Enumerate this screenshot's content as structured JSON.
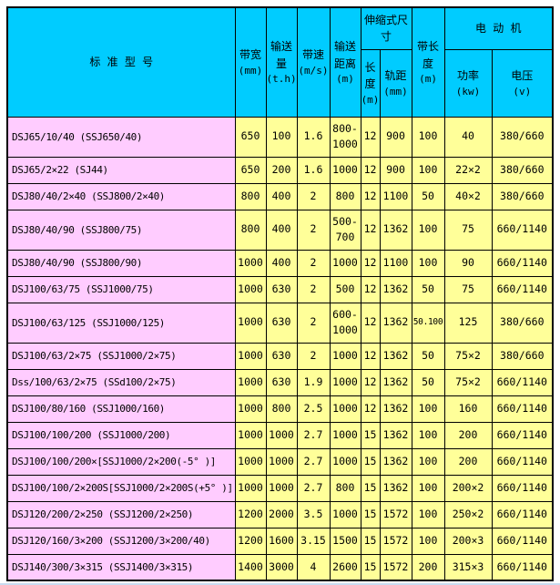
{
  "colors": {
    "header_bg": "#00CCFF",
    "model_col_bg": "#FFCCFF",
    "value_bg": "#FFFF99",
    "border": "#000000",
    "page_bg": "#FFFFFF",
    "edge_line": "#C9DCF0"
  },
  "table": {
    "header": {
      "model": "标 准 型 号",
      "belt_width": {
        "label": "带宽",
        "unit": "(mm)"
      },
      "capacity": {
        "label": "输送量",
        "unit": "(t.h)"
      },
      "speed": {
        "label": "带速",
        "unit": "(m/s)"
      },
      "distance": {
        "label": "输送距离",
        "unit": "(m)"
      },
      "telescopic": "伸缩式尺寸",
      "tele_length": {
        "label": "长度",
        "unit": "(m)"
      },
      "gauge": {
        "label": "轨距",
        "unit": "(mm)"
      },
      "belt_length": {
        "label": "带长度",
        "unit": "(m)"
      },
      "motor": "电 动 机",
      "power": {
        "label": "功率",
        "unit": "(kw)"
      },
      "voltage": {
        "label": "电压",
        "unit": "(v)"
      }
    },
    "columns": [
      "标准型号",
      "带宽(mm)",
      "输送量(t.h)",
      "带速(m/s)",
      "输送距离(m)",
      "长度(m)",
      "轨距(mm)",
      "带长度(m)",
      "功率(kw)",
      "电压(v)"
    ],
    "rows": [
      {
        "model": "DSJ65/10/40 (SSJ650/40)",
        "values": [
          "650",
          "100",
          "1.6",
          "800-1000",
          "12",
          "900",
          "100",
          "40",
          "380/660"
        ]
      },
      {
        "model": "DSJ65/2×22 (SJ44)",
        "values": [
          "650",
          "200",
          "1.6",
          "1000",
          "12",
          "900",
          "100",
          "22×2",
          "380/660"
        ]
      },
      {
        "model": "DSJ80/40/2×40 (SSJ800/2×40)",
        "values": [
          "800",
          "400",
          "2",
          "800",
          "12",
          "1100",
          "50",
          "40×2",
          "380/660"
        ]
      },
      {
        "model": "DSJ80/40/90 (SSJ800/75)",
        "values": [
          "800",
          "400",
          "2",
          "500-700",
          "12",
          "1362",
          "100",
          "75",
          "660/1140"
        ]
      },
      {
        "model": "DSJ80/40/90 (SSJ800/90)",
        "values": [
          "1000",
          "400",
          "2",
          "1000",
          "12",
          "1100",
          "100",
          "90",
          "660/1140"
        ]
      },
      {
        "model": "DSJ100/63/75 (SSJ1000/75)",
        "values": [
          "1000",
          "630",
          "2",
          "500",
          "12",
          "1362",
          "50",
          "75",
          "660/1140"
        ]
      },
      {
        "model": "DSJ100/63/125 (SSJ1000/125)",
        "values": [
          "1000",
          "630",
          "2",
          "600-1000",
          "12",
          "1362",
          "50.100",
          "125",
          "380/660"
        ]
      },
      {
        "model": "DSJ100/63/2×75 (SSJ1000/2×75)",
        "values": [
          "1000",
          "630",
          "2",
          "1000",
          "12",
          "1362",
          "50",
          "75×2",
          "380/660"
        ]
      },
      {
        "model": "Dss/100/63/2×75  (SSd100/2×75)",
        "values": [
          "1000",
          "630",
          "1.9",
          "1000",
          "12",
          "1362",
          "50",
          "75×2",
          "660/1140"
        ]
      },
      {
        "model": "DSJ100/80/160 (SSJ1000/160)",
        "values": [
          "1000",
          "800",
          "2.5",
          "1000",
          "12",
          "1362",
          "100",
          "160",
          "660/1140"
        ]
      },
      {
        "model": "DSJ100/100/200 (SSJ1000/200)",
        "values": [
          "1000",
          "1000",
          "2.7",
          "1000",
          "15",
          "1362",
          "100",
          "200",
          "660/1140"
        ]
      },
      {
        "model": "DSJ100/100/200×[SSJ1000/2×200(-5° )]",
        "values": [
          "1000",
          "1000",
          "2.7",
          "1000",
          "15",
          "1362",
          "100",
          "200",
          "660/1140"
        ]
      },
      {
        "model": "DSJ100/100/2×200S[SSJ1000/2×200S(+5° )]",
        "values": [
          "1000",
          "1000",
          "2.7",
          "800",
          "15",
          "1362",
          "100",
          "200×2",
          "660/1140"
        ]
      },
      {
        "model": "DSJ120/200/2×250 (SSJ1200/2×250)",
        "values": [
          "1200",
          "2000",
          "3.5",
          "1000",
          "15",
          "1572",
          "100",
          "250×2",
          "660/1140"
        ]
      },
      {
        "model": "DSJ120/160/3×200 (SSJ1200/3×200/40)",
        "values": [
          "1200",
          "1600",
          "3.15",
          "1500",
          "15",
          "1572",
          "100",
          "200×3",
          "660/1140"
        ]
      },
      {
        "model": "DSJ140/300/3×315 (SSJ1400/3×315)",
        "values": [
          "1400",
          "3000",
          "4",
          "2600",
          "15",
          "1572",
          "200",
          "315×3",
          "660/1140"
        ]
      }
    ]
  }
}
